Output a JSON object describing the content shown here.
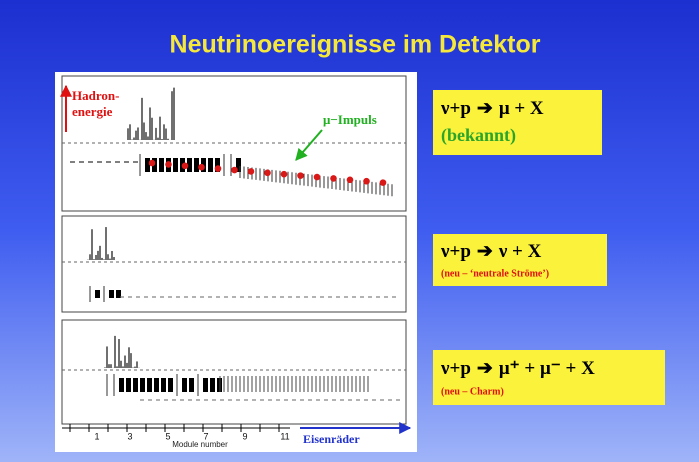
{
  "slide": {
    "title": "Neutrinoereignisse im Detektor",
    "detector": {
      "hadron_label": [
        "Hadron-",
        "energie"
      ],
      "muon_label": "μ−Impuls",
      "x_axis": {
        "tick_labels": [
          1,
          3,
          5,
          7,
          9,
          11
        ],
        "label": "Module number",
        "iron_label": "Eisenräder"
      }
    },
    "reactions": [
      {
        "lhs": "ν+p",
        "arrow": "➔",
        "rhs": "μ + X",
        "note": "(bekannt)"
      },
      {
        "lhs": "ν+p",
        "arrow": "➔",
        "rhs": "ν + X",
        "note": "(neu – ‘neutrale Ströme’)"
      },
      {
        "lhs": "ν+p",
        "arrow": "➔",
        "rhs": "μ⁺ + μ⁻ + X",
        "note": "(neu – Charm)"
      }
    ]
  }
}
